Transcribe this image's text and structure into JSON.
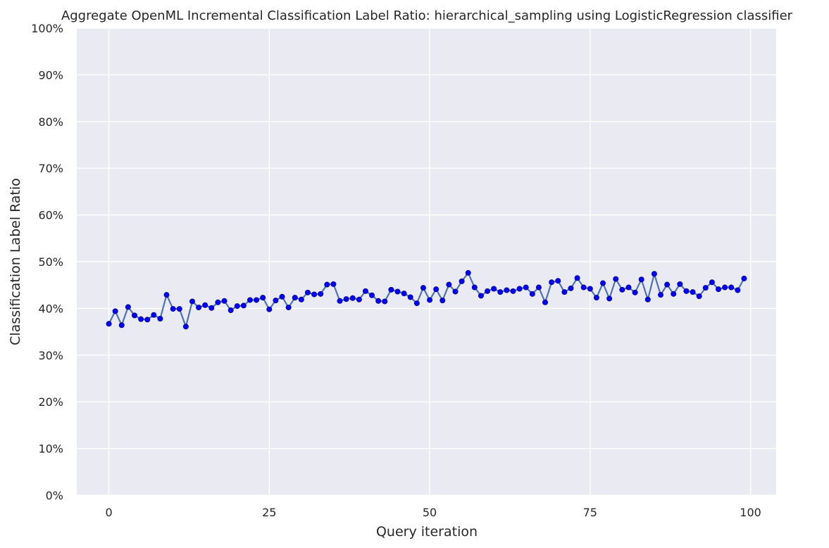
{
  "chart_data": {
    "type": "line",
    "title": "Aggregate OpenML Incremental Classification Label Ratio: hierarchical_sampling using LogisticRegression classifier",
    "xlabel": "Query iteration",
    "ylabel": "Classification Label Ratio",
    "xlim": [
      -5,
      104
    ],
    "ylim": [
      0,
      1
    ],
    "xticks": [
      0,
      25,
      50,
      75,
      100
    ],
    "xtick_labels": [
      "0",
      "25",
      "50",
      "75",
      "100"
    ],
    "yticks": [
      0,
      0.1,
      0.2,
      0.3,
      0.4,
      0.5,
      0.6,
      0.7,
      0.8,
      0.9,
      1.0
    ],
    "ytick_labels": [
      "0%",
      "10%",
      "20%",
      "30%",
      "40%",
      "50%",
      "60%",
      "70%",
      "80%",
      "90%",
      "100%"
    ],
    "grid": true,
    "colors": {
      "background": "#eaeaf2",
      "grid": "#ffffff",
      "line": "#4c72b0",
      "marker": "#0000ff",
      "marker_edge": "#00008b"
    },
    "series": [
      {
        "x": [
          0,
          1,
          2,
          3,
          4,
          5,
          6,
          7,
          8,
          9,
          10,
          11,
          12,
          13,
          14,
          15,
          16,
          17,
          18,
          19,
          20,
          21,
          22,
          23,
          24,
          25,
          26,
          27,
          28,
          29,
          30,
          31,
          32,
          33,
          34,
          35,
          36,
          37,
          38,
          39,
          40,
          41,
          42,
          43,
          44,
          45,
          46,
          47,
          48,
          49,
          50,
          51,
          52,
          53,
          54,
          55,
          56,
          57,
          58,
          59,
          60,
          61,
          62,
          63,
          64,
          65,
          66,
          67,
          68,
          69,
          70,
          71,
          72,
          73,
          74,
          75,
          76,
          77,
          78,
          79,
          80,
          81,
          82,
          83,
          84,
          85,
          86,
          87,
          88,
          89,
          90,
          91,
          92,
          93,
          94,
          95,
          96,
          97,
          98,
          99
        ],
        "values": [
          0.367,
          0.394,
          0.364,
          0.403,
          0.385,
          0.377,
          0.376,
          0.386,
          0.378,
          0.429,
          0.399,
          0.399,
          0.361,
          0.415,
          0.402,
          0.407,
          0.401,
          0.413,
          0.416,
          0.396,
          0.405,
          0.406,
          0.418,
          0.418,
          0.423,
          0.398,
          0.417,
          0.425,
          0.402,
          0.423,
          0.419,
          0.434,
          0.43,
          0.431,
          0.451,
          0.452,
          0.416,
          0.42,
          0.422,
          0.419,
          0.437,
          0.428,
          0.416,
          0.415,
          0.44,
          0.436,
          0.432,
          0.424,
          0.411,
          0.444,
          0.418,
          0.441,
          0.417,
          0.451,
          0.436,
          0.458,
          0.476,
          0.445,
          0.427,
          0.437,
          0.442,
          0.435,
          0.439,
          0.437,
          0.442,
          0.445,
          0.431,
          0.445,
          0.413,
          0.456,
          0.459,
          0.435,
          0.443,
          0.465,
          0.445,
          0.442,
          0.423,
          0.454,
          0.421,
          0.463,
          0.44,
          0.445,
          0.434,
          0.462,
          0.419,
          0.474,
          0.429,
          0.451,
          0.431,
          0.452,
          0.437,
          0.435,
          0.426,
          0.444,
          0.456,
          0.441,
          0.445,
          0.445,
          0.439,
          0.464
        ]
      }
    ]
  }
}
